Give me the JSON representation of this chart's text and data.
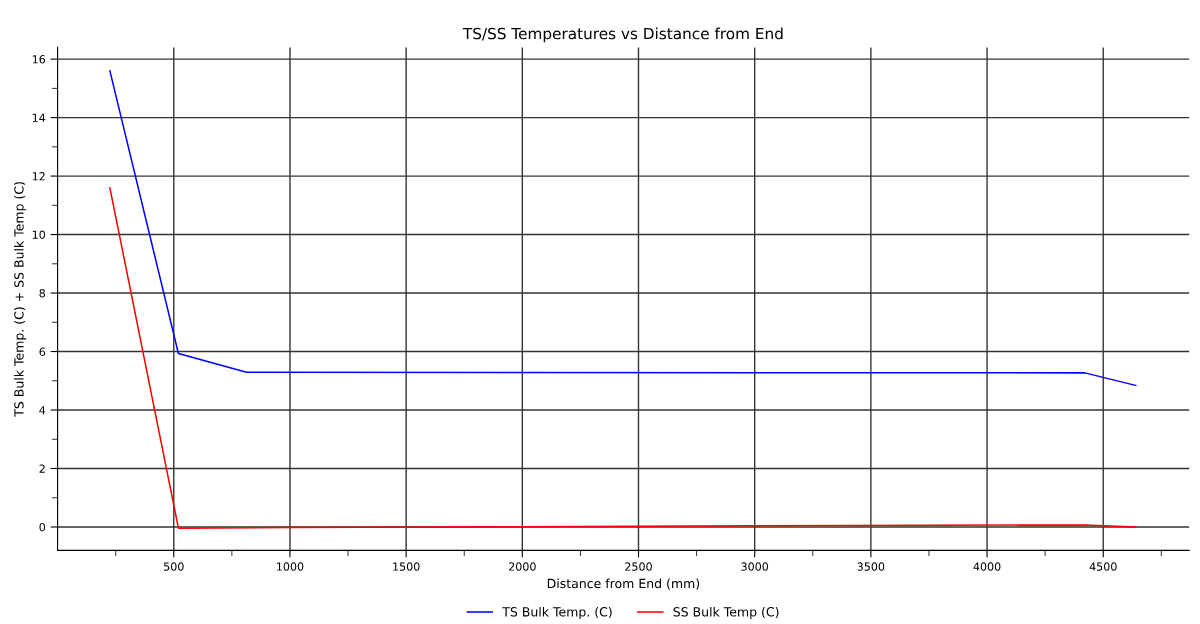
{
  "chart_data": {
    "type": "line",
    "title": "TS/SS Temperatures vs Distance from End",
    "xlabel": "Distance from End (mm)",
    "ylabel": "TS Bulk Temp. (C) + SS Bulk Temp (C)",
    "series": [
      {
        "name": "TS Bulk Temp. (C)",
        "color": "#0000ff",
        "x": [
          225,
          520,
          813,
          4421,
          4640
        ],
        "values": [
          15.6,
          5.93,
          5.29,
          5.27,
          4.84
        ]
      },
      {
        "name": "SS Bulk Temp (C)",
        "color": "#ff0000",
        "x": [
          225,
          520,
          1000,
          2000,
          3000,
          4421,
          4640
        ],
        "values": [
          11.6,
          -0.04,
          -0.02,
          0.01,
          0.04,
          0.07,
          0.0
        ]
      }
    ],
    "xlim": [
      0,
      4870
    ],
    "ylim": [
      -0.8,
      16.4
    ],
    "xticks": [
      {
        "value": 250,
        "label": null
      },
      500,
      {
        "value": 750,
        "label": null
      },
      1000,
      {
        "value": 1250,
        "label": null
      },
      1500,
      {
        "value": 1750,
        "label": null
      },
      2000,
      {
        "value": 2250,
        "label": null
      },
      2500,
      {
        "value": 2750,
        "label": null
      },
      3000,
      {
        "value": 3250,
        "label": null
      },
      3500,
      {
        "value": 3750,
        "label": null
      },
      4000,
      {
        "value": 4250,
        "label": null
      },
      4500,
      {
        "value": 4750,
        "label": null
      }
    ],
    "yticks": [
      0,
      {
        "value": 1,
        "label": null
      },
      2,
      {
        "value": 3,
        "label": null
      },
      4,
      {
        "value": 5,
        "label": null
      },
      6,
      {
        "value": 7,
        "label": null
      },
      8,
      {
        "value": 9,
        "label": null
      },
      10,
      {
        "value": 11,
        "label": null
      },
      12,
      {
        "value": 13,
        "label": null
      },
      14,
      {
        "value": 15,
        "label": null
      },
      16
    ],
    "grid": true,
    "legend": "bottom",
    "marker": "none",
    "line_style": "solid"
  }
}
